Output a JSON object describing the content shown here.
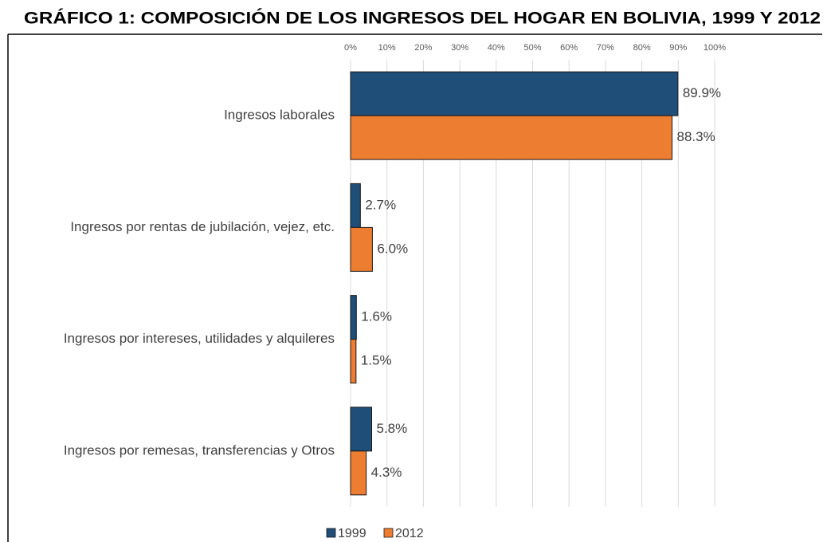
{
  "chart_data": {
    "type": "hbar",
    "title": "GRÁFICO 1: COMPOSICIÓN DE LOS INGRESOS DEL HOGAR EN BOLIVIA, 1999 Y 2012",
    "categories": [
      "Ingresos laborales",
      "Ingresos por rentas de jubilación, vejez,  etc.",
      "Ingresos por intereses, utilidades y alquileres",
      "Ingresos por remesas, transferencias y Otros"
    ],
    "series": [
      {
        "name": "1999",
        "color": "#1f4e79",
        "values": [
          89.9,
          2.7,
          1.6,
          5.8
        ],
        "value_labels": [
          "89.9%",
          "2.7%",
          "1.6%",
          "5.8%"
        ]
      },
      {
        "name": "2012",
        "color": "#ed7d31",
        "values": [
          88.3,
          6.0,
          1.5,
          4.3
        ],
        "value_labels": [
          "88.3%",
          "6.0%",
          "1.5%",
          "4.3%"
        ]
      }
    ],
    "xlim": [
      0,
      100
    ],
    "xticks": [
      {
        "value": 0,
        "label": "0%"
      },
      {
        "value": 10,
        "label": "10%"
      },
      {
        "value": 20,
        "label": "20%"
      },
      {
        "value": 30,
        "label": "30%"
      },
      {
        "value": 40,
        "label": "40%"
      },
      {
        "value": 50,
        "label": "50%"
      },
      {
        "value": 60,
        "label": "60%"
      },
      {
        "value": 70,
        "label": "70%"
      },
      {
        "value": 80,
        "label": "80%"
      },
      {
        "value": 90,
        "label": "90%"
      },
      {
        "value": 100,
        "label": "100%"
      }
    ],
    "grid": true
  }
}
